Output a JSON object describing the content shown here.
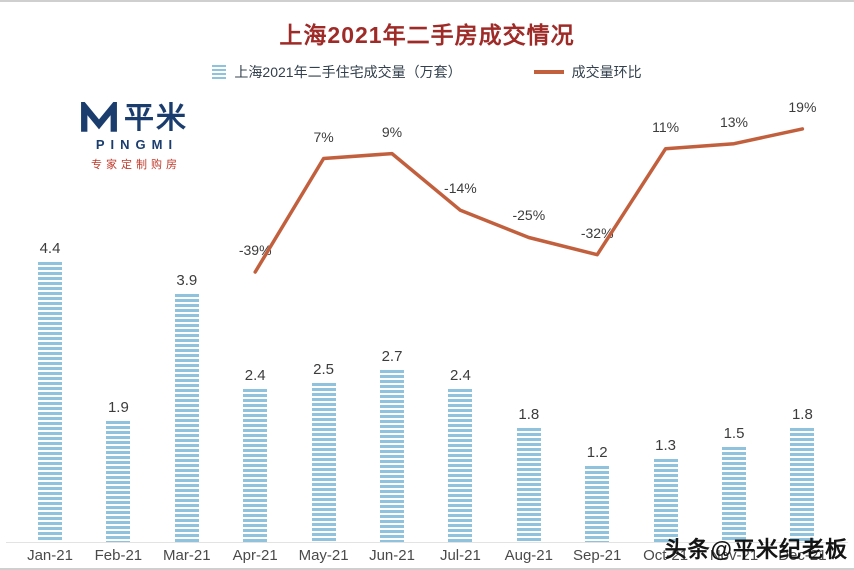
{
  "page": {
    "title": "上海2021年二手房成交情况",
    "watermark": "头条@平米纪老板"
  },
  "logo": {
    "name": "平米",
    "latin": "PINGMI",
    "tagline": "专家定制购房"
  },
  "legend": {
    "bars_label": "上海2021年二手住宅成交量（万套）",
    "line_label": "成交量环比"
  },
  "colors": {
    "title": "#9e2b28",
    "bar": "#8fc2dc",
    "line": "#c2603e",
    "logo_navy": "#1b3d6e",
    "logo_red": "#c03a2b"
  },
  "chart_data": {
    "type": "bar",
    "title": "上海2021年二手房成交情况",
    "categories": [
      "Jan-21",
      "Feb-21",
      "Mar-21",
      "Apr-21",
      "May-21",
      "Jun-21",
      "Jul-21",
      "Aug-21",
      "Sep-21",
      "Oct-21",
      "Nov-21",
      "Dec-21"
    ],
    "series": [
      {
        "name": "上海2021年二手住宅成交量（万套）",
        "type": "bar",
        "unit": "万套",
        "values": [
          4.4,
          1.9,
          3.9,
          2.4,
          2.5,
          2.7,
          2.4,
          1.8,
          1.2,
          1.3,
          1.5,
          1.8
        ]
      },
      {
        "name": "成交量环比",
        "type": "line",
        "unit": "%",
        "values": [
          null,
          null,
          null,
          -39,
          7,
          9,
          -14,
          -25,
          -32,
          11,
          13,
          19
        ]
      }
    ],
    "legend_position": "top",
    "grid": false,
    "value_labels": true,
    "xlabel": "",
    "ylabel": ""
  }
}
